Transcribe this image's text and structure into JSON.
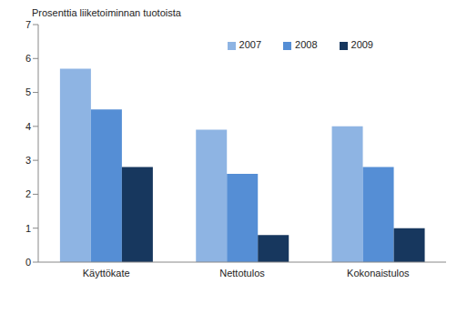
{
  "chart_data": {
    "type": "bar",
    "ylabel": "Prosenttia liiketoiminnan tuotoista",
    "categories": [
      "Käyttökate",
      "Nettotulos",
      "Kokonaistulos"
    ],
    "series": [
      {
        "name": "2007",
        "color": "#8eb4e3",
        "values": [
          5.7,
          3.9,
          4.0
        ]
      },
      {
        "name": "2008",
        "color": "#558ed5",
        "values": [
          4.5,
          2.6,
          2.8
        ]
      },
      {
        "name": "2009",
        "color": "#17375e",
        "values": [
          2.8,
          0.8,
          1.0
        ]
      }
    ],
    "ylim": [
      0,
      7
    ],
    "yticks": [
      0,
      1,
      2,
      3,
      4,
      5,
      6,
      7
    ],
    "grid": false,
    "legend": "upper right"
  }
}
